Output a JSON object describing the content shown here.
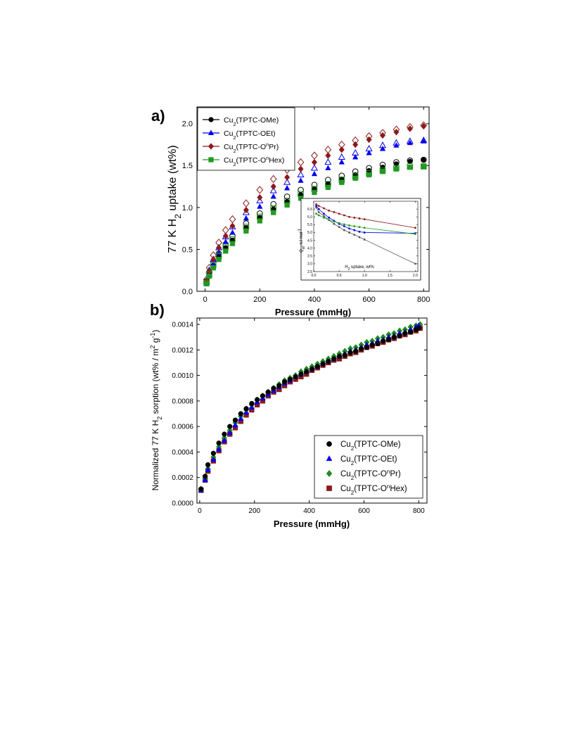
{
  "figure": {
    "panels": [
      {
        "panel_label": "a)",
        "xlabel": "Pressure (mmHg)",
        "ylabel": "77 K H2 uptake (wt%)",
        "inset_xlabel": "H2 uptake, wt%",
        "inset_ylabel": "Qst, kJ mol-1"
      },
      {
        "panel_label": "b)",
        "xlabel": "Pressure (mmHg)",
        "ylabel": "Normalized 77 K H2 sorption (wt% / m2 g-1)"
      }
    ]
  },
  "chart_data": [
    {
      "type": "scatter",
      "panel": "a)",
      "title": "",
      "xlabel": "Pressure (mmHg)",
      "ylabel": "77 K H2 uptake (wt%)",
      "xlim": [
        -30,
        820
      ],
      "ylim": [
        0,
        2.2
      ],
      "xticks": [
        0,
        200,
        400,
        600,
        800
      ],
      "yticks": [
        0.0,
        0.5,
        1.0,
        1.5,
        2.0
      ],
      "grid": false,
      "legend_position": "top-left",
      "note": "filled markers = adsorption, open markers = desorption",
      "series": [
        {
          "name": "Cu2(TPTC-OMe)",
          "label_sub": "2",
          "label_pre": "Cu",
          "label_post": "(TPTC-OMe)",
          "label_sup": "",
          "color": "#000000",
          "marker": "circle",
          "x": [
            5,
            15,
            30,
            50,
            75,
            100,
            150,
            200,
            250,
            300,
            350,
            400,
            450,
            500,
            550,
            600,
            650,
            700,
            750,
            800
          ],
          "adsorption": [
            0.1,
            0.2,
            0.3,
            0.41,
            0.52,
            0.61,
            0.76,
            0.88,
            0.98,
            1.07,
            1.15,
            1.22,
            1.28,
            1.34,
            1.39,
            1.44,
            1.48,
            1.52,
            1.55,
            1.57
          ],
          "desorption": [
            0.12,
            0.23,
            0.34,
            0.45,
            0.56,
            0.66,
            0.81,
            0.93,
            1.04,
            1.13,
            1.21,
            1.27,
            1.33,
            1.38,
            1.43,
            1.47,
            1.51,
            1.54,
            1.56,
            1.57
          ]
        },
        {
          "name": "Cu2(TPTC-OEt)",
          "label_sub": "2",
          "label_pre": "Cu",
          "label_post": "(TPTC-OEt)",
          "label_sup": "",
          "color": "#0000ee",
          "marker": "triangle",
          "x": [
            5,
            15,
            30,
            50,
            75,
            100,
            150,
            200,
            250,
            300,
            350,
            400,
            450,
            500,
            550,
            600,
            650,
            700,
            750,
            800
          ],
          "adsorption": [
            0.1,
            0.21,
            0.33,
            0.46,
            0.59,
            0.7,
            0.87,
            1.01,
            1.13,
            1.23,
            1.32,
            1.4,
            1.47,
            1.54,
            1.6,
            1.65,
            1.7,
            1.74,
            1.77,
            1.79
          ],
          "desorption": [
            0.12,
            0.25,
            0.38,
            0.52,
            0.65,
            0.77,
            0.94,
            1.08,
            1.2,
            1.3,
            1.39,
            1.47,
            1.54,
            1.6,
            1.65,
            1.7,
            1.74,
            1.77,
            1.79,
            1.8
          ]
        },
        {
          "name": "Cu2(TPTC-OnPr)",
          "label_sub": "2",
          "label_pre": "Cu",
          "label_post_a": "(TPTC-O",
          "label_sup": "n",
          "label_post_b": "Pr)",
          "color": "#8b1a1a",
          "marker": "diamond",
          "x": [
            5,
            15,
            30,
            50,
            75,
            100,
            150,
            200,
            250,
            300,
            350,
            400,
            450,
            500,
            550,
            600,
            650,
            700,
            750,
            800
          ],
          "adsorption": [
            0.12,
            0.24,
            0.38,
            0.52,
            0.66,
            0.78,
            0.97,
            1.12,
            1.25,
            1.36,
            1.46,
            1.54,
            1.62,
            1.69,
            1.75,
            1.81,
            1.86,
            1.9,
            1.94,
            1.97
          ],
          "desorption": [
            0.14,
            0.28,
            0.43,
            0.58,
            0.73,
            0.86,
            1.05,
            1.21,
            1.34,
            1.45,
            1.54,
            1.62,
            1.69,
            1.75,
            1.8,
            1.85,
            1.89,
            1.93,
            1.96,
            1.98
          ]
        },
        {
          "name": "Cu2(TPTC-OnHex)",
          "label_sub": "2",
          "label_pre": "Cu",
          "label_post_a": "(TPTC-O",
          "label_sup": "n",
          "label_post_b": "Hex)",
          "color": "#229922",
          "marker": "square",
          "x": [
            5,
            15,
            30,
            50,
            75,
            100,
            150,
            200,
            250,
            300,
            350,
            400,
            450,
            500,
            550,
            600,
            650,
            700,
            750,
            800
          ],
          "adsorption": [
            0.09,
            0.18,
            0.28,
            0.38,
            0.48,
            0.57,
            0.72,
            0.84,
            0.94,
            1.03,
            1.11,
            1.18,
            1.24,
            1.3,
            1.35,
            1.39,
            1.43,
            1.46,
            1.48,
            1.49
          ],
          "desorption": [
            0.1,
            0.2,
            0.31,
            0.42,
            0.53,
            0.62,
            0.77,
            0.89,
            0.99,
            1.08,
            1.16,
            1.22,
            1.28,
            1.33,
            1.37,
            1.41,
            1.44,
            1.47,
            1.49,
            1.49
          ]
        }
      ]
    },
    {
      "type": "line",
      "panel": "a) inset",
      "title": "",
      "xlabel": "H2 uptake, wt%",
      "ylabel": "Qst, kJ mol-1",
      "xlim": [
        0,
        2.05
      ],
      "ylim": [
        2.5,
        7.0
      ],
      "xticks": [
        0.0,
        0.5,
        1.0,
        1.5,
        2.0
      ],
      "xtick_labels": [
        "0.0",
        "0.5",
        "1.0",
        "1.5",
        "2.0"
      ],
      "yticks": [
        2.5,
        3.0,
        3.5,
        4.0,
        4.5,
        5.0,
        5.5,
        6.0,
        6.5
      ],
      "ytick_labels": [
        "2.5",
        "3.0",
        "3.5",
        "4.0",
        "4.5",
        "5.0",
        "5.5",
        "6.0",
        "6.5"
      ],
      "series": [
        {
          "color": "#555555",
          "x": [
            0.05,
            0.1,
            0.2,
            0.3,
            0.4,
            0.5,
            0.6,
            0.7,
            0.8,
            0.9,
            1.0,
            2.0
          ],
          "y": [
            6.6,
            6.3,
            6.05,
            5.8,
            5.55,
            5.35,
            5.15,
            5.0,
            4.85,
            4.7,
            4.55,
            3.0
          ]
        },
        {
          "color": "#0000ee",
          "x": [
            0.05,
            0.1,
            0.2,
            0.3,
            0.4,
            0.5,
            0.6,
            0.7,
            0.8,
            0.9,
            1.0,
            2.0
          ],
          "y": [
            6.7,
            6.5,
            6.2,
            5.95,
            5.75,
            5.55,
            5.4,
            5.25,
            5.15,
            5.05,
            5.0,
            4.95
          ]
        },
        {
          "color": "#8b1a1a",
          "x": [
            0.05,
            0.1,
            0.2,
            0.3,
            0.4,
            0.5,
            0.6,
            0.7,
            0.8,
            0.9,
            1.0,
            2.0
          ],
          "y": [
            6.8,
            6.7,
            6.55,
            6.4,
            6.3,
            6.2,
            6.1,
            6.0,
            5.95,
            5.9,
            5.85,
            5.3
          ]
        },
        {
          "color": "#229922",
          "x": [
            0.05,
            0.1,
            0.2,
            0.3,
            0.4,
            0.5,
            0.6,
            0.7,
            0.8,
            0.9,
            1.0,
            2.0
          ],
          "y": [
            6.2,
            6.1,
            5.95,
            5.8,
            5.7,
            5.6,
            5.52,
            5.45,
            5.4,
            5.35,
            5.3,
            4.9
          ]
        }
      ]
    },
    {
      "type": "scatter",
      "panel": "b)",
      "title": "",
      "xlabel": "Pressure (mmHg)",
      "ylabel": "Normalized 77 K H2 sorption (wt% / m2 g-1)",
      "xlim": [
        -10,
        830
      ],
      "ylim": [
        0,
        0.00145
      ],
      "xticks": [
        0,
        200,
        400,
        600,
        800
      ],
      "yticks": [
        0.0,
        0.0002,
        0.0004,
        0.0006,
        0.0008,
        0.001,
        0.0012,
        0.0014
      ],
      "ytick_labels": [
        "0.0000",
        "0.0002",
        "0.0004",
        "0.0006",
        "0.0008",
        "0.0010",
        "0.0012",
        "0.0014"
      ],
      "grid": false,
      "legend_position": "bottom-right",
      "series": [
        {
          "name": "Cu2(TPTC-OMe)",
          "label_pre": "Cu",
          "label_sub": "2",
          "label_post": "(TPTC-OMe)",
          "label_sup": "",
          "color": "#000000",
          "marker": "circle",
          "x": [
            5,
            20,
            30,
            50,
            70,
            90,
            110,
            130,
            150,
            170,
            190,
            210,
            230,
            250,
            270,
            290,
            310,
            330,
            350,
            370,
            390,
            410,
            430,
            450,
            470,
            490,
            510,
            530,
            550,
            570,
            590,
            610,
            630,
            650,
            670,
            690,
            710,
            730,
            750,
            770,
            790,
            800
          ],
          "y": [
            0.00011,
            0.00021,
            0.0003,
            0.00039,
            0.00047,
            0.00054,
            0.0006,
            0.00065,
            0.0007,
            0.00074,
            0.00078,
            0.00081,
            0.00084,
            0.00087,
            0.0009,
            0.00092,
            0.00095,
            0.00097,
            0.00099,
            0.00101,
            0.00103,
            0.00105,
            0.00107,
            0.00109,
            0.00111,
            0.00113,
            0.00115,
            0.00116,
            0.00118,
            0.00119,
            0.00121,
            0.00122,
            0.00124,
            0.00125,
            0.00127,
            0.00128,
            0.0013,
            0.00131,
            0.00133,
            0.00134,
            0.00136,
            0.00137
          ]
        },
        {
          "name": "Cu2(TPTC-OEt)",
          "label_pre": "Cu",
          "label_sub": "2",
          "label_post": "(TPTC-OEt)",
          "label_sup": "",
          "color": "#0000ee",
          "marker": "triangle",
          "x": [
            5,
            20,
            30,
            50,
            70,
            90,
            110,
            130,
            150,
            170,
            190,
            210,
            230,
            250,
            270,
            290,
            310,
            330,
            350,
            370,
            390,
            410,
            430,
            450,
            470,
            490,
            510,
            530,
            550,
            570,
            590,
            610,
            630,
            650,
            670,
            690,
            710,
            730,
            750,
            770,
            790,
            800
          ],
          "y": [
            0.0001,
            0.00018,
            0.00026,
            0.00034,
            0.00042,
            0.00049,
            0.00055,
            0.00061,
            0.00066,
            0.00071,
            0.00075,
            0.00079,
            0.00082,
            0.00085,
            0.00088,
            0.00091,
            0.00094,
            0.00096,
            0.00099,
            0.00101,
            0.00103,
            0.00105,
            0.00107,
            0.00109,
            0.00111,
            0.00113,
            0.00115,
            0.00117,
            0.00119,
            0.0012,
            0.00122,
            0.00124,
            0.00125,
            0.00127,
            0.00128,
            0.0013,
            0.00131,
            0.00133,
            0.00134,
            0.00136,
            0.00138,
            0.00139
          ]
        },
        {
          "name": "Cu2(TPTC-OnPr)",
          "label_pre": "Cu",
          "label_sub": "2",
          "label_post_a": "(TPTC-O",
          "label_sup": "n",
          "label_post_b": "Pr)",
          "color": "#1e8c1e",
          "marker": "diamond",
          "x": [
            5,
            20,
            30,
            50,
            70,
            90,
            110,
            130,
            150,
            170,
            190,
            210,
            230,
            250,
            270,
            290,
            310,
            330,
            350,
            370,
            390,
            410,
            430,
            450,
            470,
            490,
            510,
            530,
            550,
            570,
            590,
            610,
            630,
            650,
            670,
            690,
            710,
            730,
            750,
            770,
            790,
            805
          ],
          "y": [
            0.00011,
            0.00019,
            0.00027,
            0.00036,
            0.00044,
            0.00051,
            0.00057,
            0.00063,
            0.00068,
            0.00073,
            0.00077,
            0.00081,
            0.00084,
            0.00087,
            0.0009,
            0.00093,
            0.00096,
            0.00098,
            0.001,
            0.00103,
            0.00105,
            0.00107,
            0.00109,
            0.00111,
            0.00113,
            0.00115,
            0.00117,
            0.00119,
            0.00121,
            0.00122,
            0.00124,
            0.00126,
            0.00127,
            0.00129,
            0.0013,
            0.00132,
            0.00133,
            0.00135,
            0.00136,
            0.00138,
            0.00139,
            0.0014
          ]
        },
        {
          "name": "Cu2(TPTC-OnHex)",
          "label_pre": "Cu",
          "label_sub": "2",
          "label_post_a": "(TPTC-O",
          "label_sup": "n",
          "label_post_b": "Hex)",
          "color": "#8b1a1a",
          "marker": "square",
          "x": [
            5,
            20,
            30,
            50,
            70,
            90,
            110,
            130,
            150,
            170,
            190,
            210,
            230,
            250,
            270,
            290,
            310,
            330,
            350,
            370,
            390,
            410,
            430,
            450,
            470,
            490,
            510,
            530,
            550,
            570,
            590,
            610,
            630,
            650,
            670,
            690,
            710,
            730,
            750,
            770,
            790,
            805
          ],
          "y": [
            0.0001,
            0.00018,
            0.00025,
            0.00033,
            0.00041,
            0.00048,
            0.00054,
            0.00059,
            0.00064,
            0.00069,
            0.00073,
            0.00077,
            0.0008,
            0.00084,
            0.00087,
            0.00089,
            0.00092,
            0.00095,
            0.00097,
            0.00099,
            0.00101,
            0.00104,
            0.00106,
            0.00108,
            0.0011,
            0.00112,
            0.00113,
            0.00115,
            0.00117,
            0.00118,
            0.0012,
            0.00122,
            0.00123,
            0.00125,
            0.00126,
            0.00128,
            0.00129,
            0.00131,
            0.00132,
            0.00134,
            0.00135,
            0.00137
          ]
        }
      ]
    }
  ]
}
